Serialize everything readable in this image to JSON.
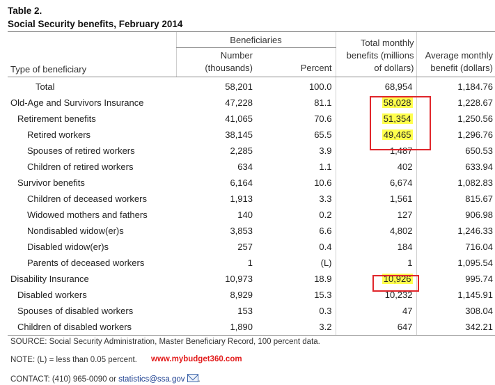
{
  "table": {
    "label": "Table 2.",
    "title": "Social Security benefits, February 2014",
    "headers": {
      "group": "Beneficiaries",
      "type": "Type of beneficiary",
      "number_line1": "Number",
      "number_line2": "(thousands)",
      "percent": "Percent",
      "benefits_line1": "Total monthly",
      "benefits_line2": "benefits (millions",
      "benefits_line3": "of dollars)",
      "avg_line1": "Average monthly",
      "avg_line2": "benefit (dollars)"
    },
    "rows": [
      {
        "label": "Total",
        "number": "58,201",
        "percent": "100.0",
        "benefits": "68,954",
        "average": "1,184.76"
      },
      {
        "label": "Old-Age and Survivors Insurance",
        "number": "47,228",
        "percent": "81.1",
        "benefits": "58,028",
        "average": "1,228.67"
      },
      {
        "label": "Retirement benefits",
        "number": "41,065",
        "percent": "70.6",
        "benefits": "51,354",
        "average": "1,250.56"
      },
      {
        "label": "Retired workers",
        "number": "38,145",
        "percent": "65.5",
        "benefits": "49,465",
        "average": "1,296.76"
      },
      {
        "label": "Spouses of retired workers",
        "number": "2,285",
        "percent": "3.9",
        "benefits": "1,487",
        "average": "650.53"
      },
      {
        "label": "Children of retired workers",
        "number": "634",
        "percent": "1.1",
        "benefits": "402",
        "average": "633.94"
      },
      {
        "label": "Survivor benefits",
        "number": "6,164",
        "percent": "10.6",
        "benefits": "6,674",
        "average": "1,082.83"
      },
      {
        "label": "Children of deceased workers",
        "number": "1,913",
        "percent": "3.3",
        "benefits": "1,561",
        "average": "815.67"
      },
      {
        "label": "Widowed mothers and fathers",
        "number": "140",
        "percent": "0.2",
        "benefits": "127",
        "average": "906.98"
      },
      {
        "label": "Nondisabled widow(er)s",
        "number": "3,853",
        "percent": "6.6",
        "benefits": "4,802",
        "average": "1,246.33"
      },
      {
        "label": "Disabled widow(er)s",
        "number": "257",
        "percent": "0.4",
        "benefits": "184",
        "average": "716.04"
      },
      {
        "label": "Parents of deceased workers",
        "number": "1",
        "percent": "(L)",
        "benefits": "1",
        "average": "1,095.54"
      },
      {
        "label": "Disability Insurance",
        "number": "10,973",
        "percent": "18.9",
        "benefits": "10,926",
        "average": "995.74"
      },
      {
        "label": "Disabled workers",
        "number": "8,929",
        "percent": "15.3",
        "benefits": "10,232",
        "average": "1,145.91"
      },
      {
        "label": "Spouses of disabled workers",
        "number": "153",
        "percent": "0.3",
        "benefits": "47",
        "average": "308.04"
      },
      {
        "label": "Children of disabled workers",
        "number": "1,890",
        "percent": "3.2",
        "benefits": "647",
        "average": "342.21"
      }
    ]
  },
  "highlight_color": "#ffff4d",
  "box_color": "#e0262b",
  "notes": {
    "source": "SOURCE: Social Security Administration, Master Beneficiary Record, 100 percent data.",
    "note": "NOTE: (L) = less than 0.05 percent.",
    "watermark": "www.mybudget360.com",
    "contact_prefix": "CONTACT: (410) 965-0090 or ",
    "contact_email": "statistics@ssa.gov",
    "contact_suffix": ".",
    "mail_icon": "mail-icon"
  }
}
